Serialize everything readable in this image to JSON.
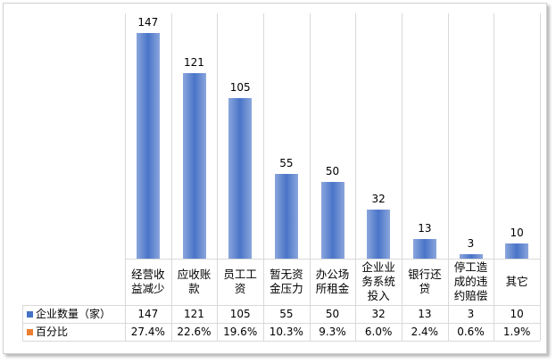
{
  "chart_data": {
    "type": "bar",
    "categories": [
      "经营收益减少",
      "应收账款",
      "员工工资",
      "暂无资金压力",
      "办公场所租金",
      "企业业务系统投入",
      "银行还贷",
      "停工造成的违约赔偿",
      "其它"
    ],
    "series": [
      {
        "name": "企业数量（家）",
        "color": "#4472c4",
        "values": [
          147,
          121,
          105,
          55,
          50,
          32,
          13,
          3,
          10
        ]
      },
      {
        "name": "百分比",
        "color": "#ed7d31",
        "values": [
          27.4,
          22.6,
          19.6,
          10.3,
          9.3,
          6.0,
          2.4,
          0.6,
          1.9
        ],
        "value_labels": [
          "27.4%",
          "22.6%",
          "19.6%",
          "10.3%",
          "9.3%",
          "6.0%",
          "2.4%",
          "0.6%",
          "1.9%"
        ]
      }
    ],
    "ylim": [
      0,
      160
    ]
  }
}
